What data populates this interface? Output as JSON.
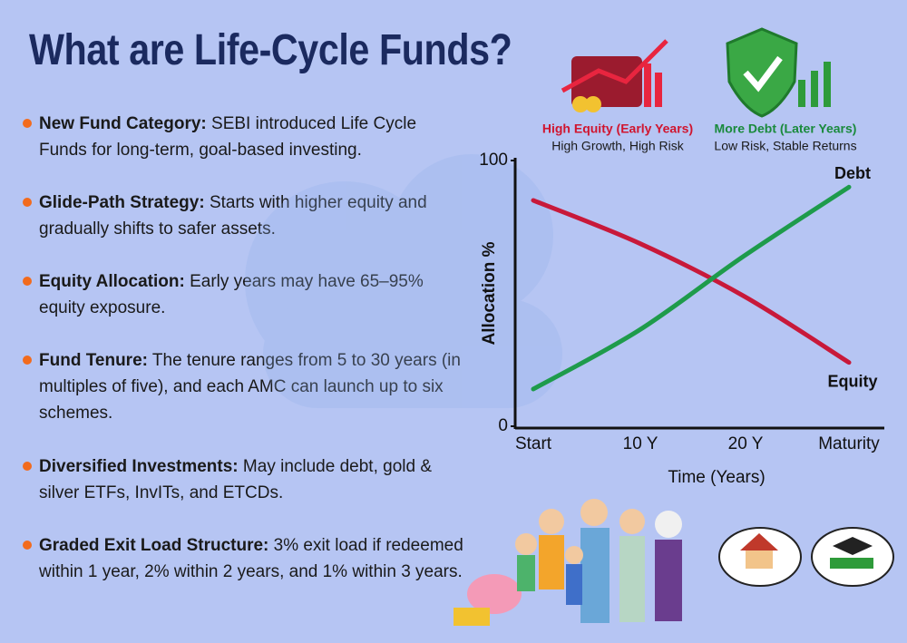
{
  "header": {
    "title": "What are Life-Cycle Funds?"
  },
  "bullets": [
    {
      "heading": "New Fund Category:",
      "text": "SEBI introduced Life Cycle Funds for long-term, goal-based investing."
    },
    {
      "heading": "Glide-Path Strategy:",
      "text": "Starts with higher equity and gradually shifts to safer assets."
    },
    {
      "heading": "Equity Allocation:",
      "text": "Early years may have 65–95% equity exposure."
    },
    {
      "heading": "Fund Tenure:",
      "text": "The tenure ranges from 5 to 30 years (in multiples of five), and each AMC can launch up to six schemes."
    },
    {
      "heading": "Diversified Investments:",
      "text": "May include debt, gold & silver ETFs, InvITs, and ETCDs."
    },
    {
      "heading": "Graded Exit Load Structure:",
      "text": "3% exit load if redeemed within 1 year, 2% within 2 years, and 1% within 3 years."
    }
  ],
  "chart_data": {
    "type": "line",
    "x_label": "Time (Years)",
    "y_label": "Allocation %",
    "categories": [
      "Start",
      "10 Y",
      "20 Y",
      "Maturity"
    ],
    "series": [
      {
        "name": "Equity",
        "color": "#c8193a",
        "values": [
          85,
          69,
          49,
          24
        ]
      },
      {
        "name": "Debt",
        "color": "#1e9b4b",
        "values": [
          14,
          36,
          64,
          90
        ]
      }
    ],
    "ylim": [
      0,
      100
    ],
    "yticks": [
      0,
      100
    ],
    "annotations": [
      {
        "title": "High Equity (Early Years)",
        "subtitle": "High Growth, High Risk",
        "color": "#d0152f"
      },
      {
        "title": "More Debt (Later Years)",
        "subtitle": "Low Risk, Stable Returns",
        "color": "#1a8a3c"
      }
    ]
  }
}
